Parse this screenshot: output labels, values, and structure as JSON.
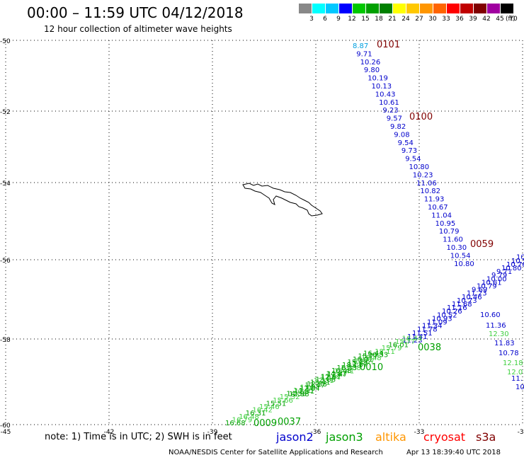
{
  "title": "00:00  –  11:59 UTC 04/12/2018",
  "subtitle": "12 hour collection of altimeter wave heights",
  "legend": {
    "labels": [
      "3",
      "6",
      "9",
      "12",
      "15",
      "18",
      "21",
      "24",
      "27",
      "30",
      "33",
      "36",
      "39",
      "42",
      "45",
      "70"
    ],
    "unit": "(ft)",
    "colors": [
      "#888888",
      "#00ffff",
      "#00c8ff",
      "#0000ff",
      "#00c800",
      "#00a000",
      "#008000",
      "#ffff00",
      "#ffc800",
      "#ff9600",
      "#ff6400",
      "#ff0000",
      "#c00000",
      "#800000",
      "#a000a0",
      "#000000"
    ]
  },
  "axes": {
    "lat_labels": [
      "-50",
      "-52",
      "-54",
      "-56",
      "-58",
      "-60"
    ],
    "lon_labels": [
      "-45",
      "-42",
      "-39",
      "-36",
      "-33",
      "-30"
    ]
  },
  "tracks": {
    "track_a_time_top": "0101",
    "track_a_time_mid": "0100",
    "track_a_time_low": "0059",
    "track_a_heights": [
      "8.87",
      "9.71",
      "10.26",
      "9.80",
      "10.19",
      "10.13",
      "10.43",
      "10.61",
      "9.23",
      "9.57",
      "9.82",
      "9.08",
      "9.54",
      "9.73",
      "9.54",
      "10.80",
      "10.23",
      "11.06",
      "10.82",
      "11.93",
      "10.67",
      "11.04",
      "10.95",
      "10.79",
      "11.60",
      "10.30",
      "10.54",
      "10.80"
    ],
    "track_b_time_a": "0038",
    "track_b_time_b": "0010",
    "track_b_time_c": "0009",
    "track_b_time_d": "0037",
    "track_b_heights": [
      "16.68",
      "16.79",
      "16.48",
      "16.31",
      "16.42",
      "15.46",
      "15.51",
      "15.66",
      "15.32",
      "14.58",
      "14.45",
      "13.87",
      "12.88",
      "12.31",
      "12.84",
      "12.47",
      "13.41",
      "13.88",
      "12.67",
      "14.87",
      "16.48",
      "16.33",
      "18.11",
      "15.79",
      "16.01",
      "15.77",
      "16.44"
    ],
    "track_c_heights": [
      "11.23",
      "11.41",
      "11.51",
      "11.78",
      "11.34",
      "11.09",
      "10.93",
      "10.52",
      "10.26",
      "11.16",
      "11.68",
      "10.73",
      "10.46",
      "11.23",
      "9.69",
      "10.79",
      "10.61",
      "10.00",
      "9.79",
      "9.71",
      "10.80",
      "10.76",
      "10.54",
      "10.61"
    ],
    "track_d_heights": [
      "10.60",
      "11.36",
      "12.30",
      "11.83",
      "10.78",
      "12.18",
      "12.0",
      "11.",
      "10"
    ]
  },
  "note": "note:  1) Time is in UTC;  2) SWH is in feet",
  "satellites": [
    {
      "name": "jason2",
      "color": "#0000cc"
    },
    {
      "name": "jason3",
      "color": "#00a000"
    },
    {
      "name": "altika",
      "color": "#ff9600"
    },
    {
      "name": "cryosat",
      "color": "#ff0000"
    },
    {
      "name": "s3a",
      "color": "#800000"
    }
  ],
  "footer": {
    "credit": "NOAA/NESDIS Center for Satellite Applications and Research",
    "timestamp": "Apr 13 18:39:40 UTC 2018"
  }
}
